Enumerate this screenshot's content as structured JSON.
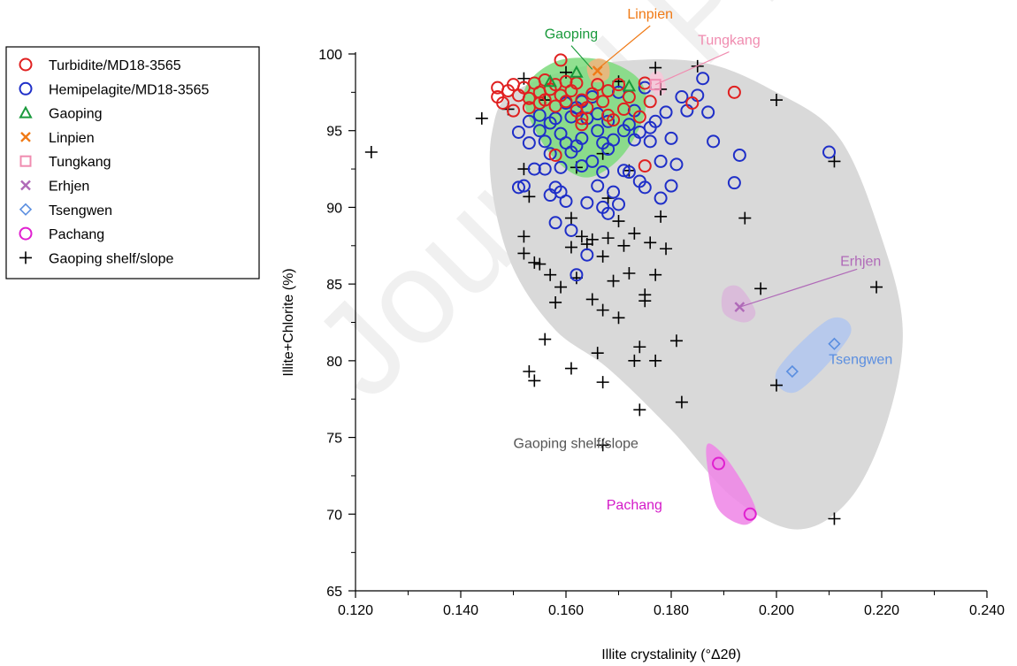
{
  "watermark": "Journal Pre-proof",
  "chart_data": {
    "type": "scatter",
    "title": "",
    "xlabel": "Illite crystalinity (°Δ2θ)",
    "ylabel": "Illite+Chlorite (%)",
    "xlim": [
      0.12,
      0.24
    ],
    "ylim": [
      65,
      100
    ],
    "xticks": [
      "0.120",
      "0.140",
      "0.160",
      "0.180",
      "0.200",
      "0.220",
      "0.240"
    ],
    "yticks": [
      "65",
      "70",
      "75",
      "80",
      "85",
      "90",
      "95",
      "100"
    ],
    "grid": false,
    "legend_position": "top-left outside",
    "legend": [
      {
        "label": "Turbidite/MD18-3565",
        "marker": "circle",
        "color": "#e02020"
      },
      {
        "label": "Hemipelagite/MD18-3565",
        "marker": "circle",
        "color": "#1f2fc8"
      },
      {
        "label": "Gaoping",
        "marker": "triangle",
        "color": "#1a9a3c"
      },
      {
        "label": "Linpien",
        "marker": "x",
        "color": "#f07a16"
      },
      {
        "label": "Tungkang",
        "marker": "square",
        "color": "#f08cb0"
      },
      {
        "label": "Erhjen",
        "marker": "x-circle",
        "color": "#b06ab8"
      },
      {
        "label": "Tsengwen",
        "marker": "diamond",
        "color": "#5a8ee0"
      },
      {
        "label": "Pachang",
        "marker": "circle",
        "color": "#e020d0"
      },
      {
        "label": "Gaoping shelf/slope",
        "marker": "plus",
        "color": "#000000"
      }
    ],
    "regions": [
      {
        "name": "Gaoping shelf/slope",
        "label": "Gaoping shelf/slope",
        "color": "#d9d9d9",
        "label_color": "#555555",
        "polygon": [
          [
            0.15,
            97.5
          ],
          [
            0.165,
            99.3
          ],
          [
            0.185,
            99.5
          ],
          [
            0.2,
            97.5
          ],
          [
            0.212,
            94.5
          ],
          [
            0.22,
            88
          ],
          [
            0.224,
            82
          ],
          [
            0.221,
            76
          ],
          [
            0.214,
            71
          ],
          [
            0.204,
            69
          ],
          [
            0.192,
            71
          ],
          [
            0.18,
            75.5
          ],
          [
            0.168,
            79.5
          ],
          [
            0.158,
            82
          ],
          [
            0.15,
            86
          ],
          [
            0.146,
            91
          ],
          [
            0.146,
            95
          ]
        ]
      },
      {
        "name": "Gaoping",
        "label": "Gaoping",
        "color": "#7ddb7d",
        "label_color": "#1a9a3c",
        "label_at": [
          0.161,
          101
        ],
        "pointer_to": [
          0.165,
          99.0
        ],
        "polygon": [
          [
            0.152,
            97.5
          ],
          [
            0.158,
            99.5
          ],
          [
            0.167,
            99.6
          ],
          [
            0.174,
            98.3
          ],
          [
            0.175,
            96.2
          ],
          [
            0.171,
            93.5
          ],
          [
            0.165,
            92.0
          ],
          [
            0.16,
            92.5
          ],
          [
            0.155,
            94.5
          ]
        ]
      },
      {
        "name": "Linpien",
        "label": "Linpien",
        "color": "#f3b37d",
        "label_color": "#f07a16",
        "label_at": [
          0.176,
          102.3
        ],
        "pointer_to": [
          0.166,
          99.0
        ],
        "polygon": [
          [
            0.164,
            99.2
          ],
          [
            0.166,
            99.7
          ],
          [
            0.168,
            99.4
          ],
          [
            0.168,
            98.4
          ],
          [
            0.165,
            98.2
          ]
        ]
      },
      {
        "name": "Tungkang",
        "label": "Tungkang",
        "color": "#f8c6d8",
        "label_color": "#f08cb0",
        "label_at": [
          0.191,
          100.6
        ],
        "pointer_to": [
          0.177,
          98.0
        ],
        "polygon": [
          [
            0.176,
            98.6
          ],
          [
            0.178,
            98.8
          ],
          [
            0.179,
            97.6
          ],
          [
            0.177,
            97.3
          ]
        ]
      },
      {
        "name": "Erhjen",
        "label": "Erhjen",
        "color": "#d9b6d9",
        "label_color": "#b06ab8",
        "label_at": [
          0.216,
          86.2
        ],
        "pointer_to": [
          0.193,
          83.5
        ],
        "polygon": [
          [
            0.19,
            84.6
          ],
          [
            0.193,
            84.8
          ],
          [
            0.196,
            83.2
          ],
          [
            0.194,
            82.5
          ],
          [
            0.19,
            83.1
          ]
        ]
      },
      {
        "name": "Tsengwen",
        "label": "Tsengwen",
        "color": "#b0c6ee",
        "label_color": "#5a8ee0",
        "label_at": [
          0.216,
          79.8
        ],
        "polygon": [
          [
            0.2,
            79.3
          ],
          [
            0.21,
            82.7
          ],
          [
            0.214,
            81.7
          ],
          [
            0.204,
            78.0
          ]
        ]
      },
      {
        "name": "Pachang",
        "label": "Pachang",
        "color": "#ee84e6",
        "label_color": "#d41ac8",
        "label_at": [
          0.173,
          70.3
        ],
        "polygon": [
          [
            0.187,
            74.6
          ],
          [
            0.191,
            73.4
          ],
          [
            0.196,
            70.4
          ],
          [
            0.194,
            69.3
          ],
          [
            0.189,
            70.3
          ],
          [
            0.187,
            72.8
          ]
        ]
      }
    ],
    "series": [
      {
        "name": "Turbidite/MD18-3565",
        "marker": "circle",
        "color": "#e02020",
        "points": [
          [
            0.147,
            97.8
          ],
          [
            0.147,
            97.2
          ],
          [
            0.148,
            96.8
          ],
          [
            0.149,
            97.6
          ],
          [
            0.15,
            98.0
          ],
          [
            0.15,
            96.3
          ],
          [
            0.151,
            97.3
          ],
          [
            0.152,
            97.8
          ],
          [
            0.153,
            97.1
          ],
          [
            0.153,
            96.5
          ],
          [
            0.154,
            98.1
          ],
          [
            0.155,
            97.5
          ],
          [
            0.155,
            96.8
          ],
          [
            0.156,
            98.3
          ],
          [
            0.156,
            97.0
          ],
          [
            0.157,
            97.7
          ],
          [
            0.158,
            96.6
          ],
          [
            0.158,
            98.0
          ],
          [
            0.159,
            97.3
          ],
          [
            0.159,
            99.6
          ],
          [
            0.16,
            98.2
          ],
          [
            0.16,
            96.9
          ],
          [
            0.161,
            97.6
          ],
          [
            0.162,
            96.3
          ],
          [
            0.162,
            98.1
          ],
          [
            0.163,
            97.0
          ],
          [
            0.163,
            95.8
          ],
          [
            0.164,
            96.5
          ],
          [
            0.165,
            97.4
          ],
          [
            0.166,
            98.0
          ],
          [
            0.167,
            96.9
          ],
          [
            0.168,
            97.6
          ],
          [
            0.169,
            95.7
          ],
          [
            0.17,
            98.0
          ],
          [
            0.171,
            96.4
          ],
          [
            0.172,
            97.2
          ],
          [
            0.174,
            95.9
          ],
          [
            0.175,
            92.7
          ],
          [
            0.175,
            98.1
          ],
          [
            0.176,
            96.9
          ],
          [
            0.184,
            96.8
          ],
          [
            0.192,
            97.5
          ],
          [
            0.158,
            93.4
          ],
          [
            0.163,
            95.4
          ],
          [
            0.168,
            96.0
          ]
        ]
      },
      {
        "name": "Hemipelagite/MD18-3565",
        "marker": "circle",
        "color": "#1f2fc8",
        "points": [
          [
            0.151,
            94.9
          ],
          [
            0.151,
            91.3
          ],
          [
            0.152,
            91.4
          ],
          [
            0.153,
            95.6
          ],
          [
            0.153,
            94.2
          ],
          [
            0.154,
            92.5
          ],
          [
            0.155,
            95.0
          ],
          [
            0.155,
            96.0
          ],
          [
            0.156,
            94.3
          ],
          [
            0.156,
            92.5
          ],
          [
            0.157,
            93.5
          ],
          [
            0.157,
            90.8
          ],
          [
            0.158,
            95.8
          ],
          [
            0.158,
            89.0
          ],
          [
            0.158,
            91.3
          ],
          [
            0.159,
            94.8
          ],
          [
            0.159,
            92.6
          ],
          [
            0.159,
            91.0
          ],
          [
            0.16,
            96.8
          ],
          [
            0.16,
            94.2
          ],
          [
            0.16,
            90.4
          ],
          [
            0.161,
            95.9
          ],
          [
            0.161,
            93.6
          ],
          [
            0.161,
            88.5
          ],
          [
            0.162,
            96.5
          ],
          [
            0.162,
            85.6
          ],
          [
            0.163,
            94.5
          ],
          [
            0.163,
            92.7
          ],
          [
            0.164,
            95.8
          ],
          [
            0.164,
            90.3
          ],
          [
            0.164,
            86.9
          ],
          [
            0.165,
            97.2
          ],
          [
            0.165,
            93.0
          ],
          [
            0.166,
            95.0
          ],
          [
            0.166,
            91.4
          ],
          [
            0.167,
            94.2
          ],
          [
            0.167,
            92.3
          ],
          [
            0.167,
            90.0
          ],
          [
            0.168,
            95.6
          ],
          [
            0.168,
            89.6
          ],
          [
            0.168,
            93.8
          ],
          [
            0.169,
            91.0
          ],
          [
            0.169,
            94.4
          ],
          [
            0.17,
            97.5
          ],
          [
            0.17,
            90.2
          ],
          [
            0.171,
            92.4
          ],
          [
            0.172,
            95.4
          ],
          [
            0.172,
            92.3
          ],
          [
            0.173,
            94.4
          ],
          [
            0.173,
            96.3
          ],
          [
            0.174,
            91.7
          ],
          [
            0.174,
            94.9
          ],
          [
            0.175,
            97.8
          ],
          [
            0.175,
            91.3
          ],
          [
            0.176,
            95.2
          ],
          [
            0.176,
            94.3
          ],
          [
            0.177,
            95.6
          ],
          [
            0.178,
            93.0
          ],
          [
            0.178,
            90.6
          ],
          [
            0.179,
            96.2
          ],
          [
            0.18,
            91.4
          ],
          [
            0.18,
            94.5
          ],
          [
            0.181,
            92.8
          ],
          [
            0.182,
            97.2
          ],
          [
            0.183,
            96.3
          ],
          [
            0.185,
            97.3
          ],
          [
            0.186,
            98.4
          ],
          [
            0.187,
            96.2
          ],
          [
            0.188,
            94.3
          ],
          [
            0.192,
            91.6
          ],
          [
            0.193,
            93.4
          ],
          [
            0.21,
            93.6
          ],
          [
            0.163,
            96.9
          ],
          [
            0.166,
            96.1
          ],
          [
            0.171,
            95.0
          ],
          [
            0.157,
            95.5
          ],
          [
            0.162,
            94.0
          ]
        ]
      },
      {
        "name": "Gaoping",
        "marker": "triangle",
        "color": "#1a9a3c",
        "points": [
          [
            0.162,
            98.8
          ],
          [
            0.157,
            98.2
          ],
          [
            0.172,
            97.9
          ]
        ]
      },
      {
        "name": "Linpien",
        "marker": "x",
        "color": "#f07a16",
        "points": [
          [
            0.166,
            98.9
          ]
        ]
      },
      {
        "name": "Tungkang",
        "marker": "square",
        "color": "#f08cb0",
        "points": [
          [
            0.177,
            98.0
          ]
        ]
      },
      {
        "name": "Erhjen",
        "marker": "x-circle",
        "color": "#b06ab8",
        "points": [
          [
            0.193,
            83.5
          ]
        ]
      },
      {
        "name": "Tsengwen",
        "marker": "diamond",
        "color": "#5a8ee0",
        "points": [
          [
            0.203,
            79.3
          ],
          [
            0.211,
            81.1
          ]
        ]
      },
      {
        "name": "Pachang",
        "marker": "circle",
        "color": "#e020d0",
        "points": [
          [
            0.189,
            73.3
          ],
          [
            0.195,
            70.0
          ]
        ]
      },
      {
        "name": "Gaoping shelf/slope",
        "marker": "plus",
        "color": "#000000",
        "points": [
          [
            0.123,
            93.6
          ],
          [
            0.144,
            95.8
          ],
          [
            0.149,
            96.4
          ],
          [
            0.152,
            98.4
          ],
          [
            0.152,
            92.5
          ],
          [
            0.152,
            88.1
          ],
          [
            0.152,
            87.0
          ],
          [
            0.153,
            90.7
          ],
          [
            0.153,
            79.3
          ],
          [
            0.154,
            78.7
          ],
          [
            0.154,
            86.4
          ],
          [
            0.155,
            86.3
          ],
          [
            0.156,
            81.4
          ],
          [
            0.157,
            85.6
          ],
          [
            0.158,
            83.8
          ],
          [
            0.159,
            84.8
          ],
          [
            0.161,
            79.5
          ],
          [
            0.161,
            87.4
          ],
          [
            0.161,
            89.3
          ],
          [
            0.162,
            92.6
          ],
          [
            0.162,
            85.4
          ],
          [
            0.163,
            88.1
          ],
          [
            0.164,
            87.6
          ],
          [
            0.165,
            84.0
          ],
          [
            0.165,
            87.9
          ],
          [
            0.166,
            80.5
          ],
          [
            0.167,
            86.8
          ],
          [
            0.167,
            83.3
          ],
          [
            0.167,
            78.6
          ],
          [
            0.167,
            74.5
          ],
          [
            0.167,
            93.5
          ],
          [
            0.168,
            90.6
          ],
          [
            0.168,
            88.0
          ],
          [
            0.169,
            85.2
          ],
          [
            0.17,
            89.1
          ],
          [
            0.17,
            82.8
          ],
          [
            0.171,
            87.5
          ],
          [
            0.172,
            92.4
          ],
          [
            0.172,
            85.7
          ],
          [
            0.173,
            80.0
          ],
          [
            0.173,
            88.3
          ],
          [
            0.174,
            76.8
          ],
          [
            0.174,
            80.9
          ],
          [
            0.175,
            84.3
          ],
          [
            0.175,
            83.9
          ],
          [
            0.176,
            87.7
          ],
          [
            0.177,
            80.0
          ],
          [
            0.177,
            85.6
          ],
          [
            0.177,
            99.1
          ],
          [
            0.178,
            97.7
          ],
          [
            0.178,
            89.4
          ],
          [
            0.179,
            87.3
          ],
          [
            0.181,
            81.3
          ],
          [
            0.182,
            77.3
          ],
          [
            0.185,
            99.2
          ],
          [
            0.194,
            89.3
          ],
          [
            0.197,
            84.7
          ],
          [
            0.2,
            97.0
          ],
          [
            0.2,
            78.4
          ],
          [
            0.211,
            93.0
          ],
          [
            0.211,
            69.7
          ],
          [
            0.219,
            84.8
          ],
          [
            0.16,
            98.8
          ],
          [
            0.156,
            97.0
          ],
          [
            0.17,
            98.2
          ]
        ]
      }
    ]
  }
}
